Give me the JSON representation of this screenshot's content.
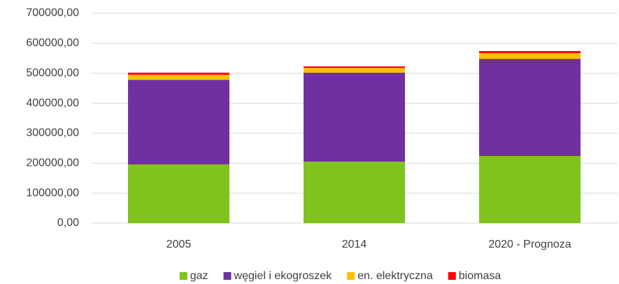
{
  "chart_data": {
    "type": "stacked_bar",
    "categories": [
      "2005",
      "2014",
      "2020 - Prognoza"
    ],
    "series": [
      {
        "name": "gaz",
        "color": "#7fc31c",
        "values": [
          196000,
          205000,
          224000
        ]
      },
      {
        "name": "węgiel i ekogroszek",
        "color": "#7030a0",
        "values": [
          282000,
          297000,
          324000
        ]
      },
      {
        "name": "en. elektryczna",
        "color": "#ffc000",
        "values": [
          17000,
          16000,
          19000
        ]
      },
      {
        "name": "biomasa",
        "color": "#ff0000",
        "values": [
          7000,
          5000,
          7000
        ]
      }
    ],
    "ylim": [
      0,
      700000
    ],
    "yticks": [
      {
        "value": 0,
        "label": "0,00"
      },
      {
        "value": 100000,
        "label": "100000,00"
      },
      {
        "value": 200000,
        "label": "200000,00"
      },
      {
        "value": 300000,
        "label": "300000,00"
      },
      {
        "value": 400000,
        "label": "400000,00"
      },
      {
        "value": 500000,
        "label": "500000,00"
      },
      {
        "value": 600000,
        "label": "600000,00"
      },
      {
        "value": 700000,
        "label": "700000,00"
      }
    ],
    "grid": true,
    "legend": "bottom"
  }
}
